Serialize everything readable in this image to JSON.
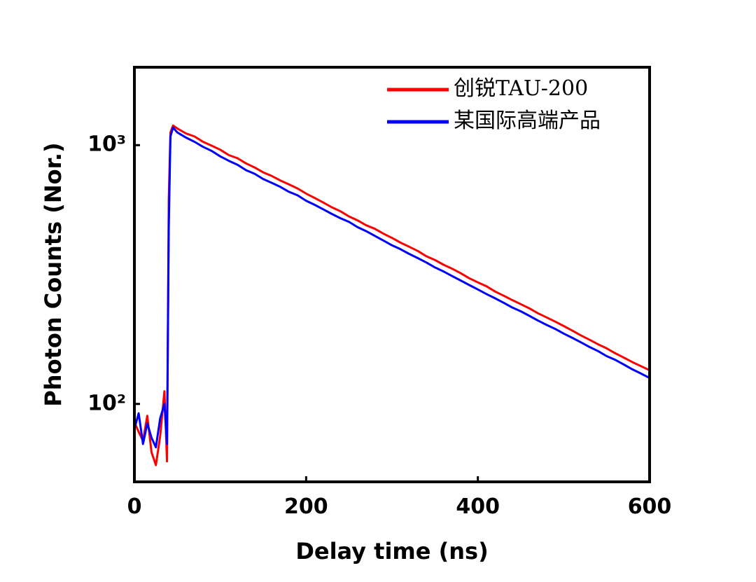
{
  "chart_data": {
    "type": "line",
    "x_label": "Delay time (ns)",
    "y_label": "Photon Counts (Nor.)",
    "xlim": [
      0,
      600
    ],
    "xticks": [
      0,
      200,
      400,
      600
    ],
    "ylim": [
      50,
      2000
    ],
    "log_y": true,
    "yticks": [
      {
        "value": 100,
        "label": "10²"
      },
      {
        "value": 1000,
        "label": "10³"
      }
    ],
    "legend": "upper right",
    "x": [
      0,
      5,
      10,
      15,
      20,
      25,
      30,
      35,
      38,
      40,
      42,
      45,
      50,
      60,
      70,
      80,
      90,
      100,
      110,
      120,
      130,
      140,
      150,
      160,
      170,
      180,
      190,
      200,
      210,
      220,
      230,
      240,
      250,
      260,
      270,
      280,
      290,
      300,
      310,
      320,
      330,
      340,
      350,
      360,
      370,
      380,
      390,
      400,
      410,
      420,
      430,
      440,
      450,
      460,
      470,
      480,
      490,
      500,
      510,
      520,
      530,
      540,
      550,
      560,
      570,
      580,
      590,
      600
    ],
    "series": [
      {
        "name": "创锐TAU-200",
        "color": "#ff0000",
        "values": [
          85,
          78,
          72,
          90,
          65,
          58,
          75,
          112,
          60,
          620,
          1120,
          1190,
          1160,
          1110,
          1080,
          1030,
          995,
          960,
          915,
          890,
          850,
          820,
          785,
          760,
          730,
          705,
          680,
          650,
          625,
          600,
          575,
          555,
          530,
          512,
          490,
          475,
          455,
          438,
          420,
          405,
          390,
          372,
          360,
          345,
          333,
          320,
          306,
          295,
          285,
          272,
          262,
          252,
          243,
          234,
          224,
          216,
          208,
          200,
          192,
          184,
          177,
          170,
          164,
          157,
          151,
          145,
          140,
          135
        ]
      },
      {
        "name": "某国际高端产品",
        "color": "#0000ff",
        "values": [
          80,
          92,
          70,
          84,
          74,
          68,
          88,
          100,
          70,
          480,
          1080,
          1170,
          1120,
          1070,
          1030,
          985,
          950,
          905,
          870,
          840,
          800,
          775,
          740,
          715,
          690,
          660,
          640,
          610,
          588,
          565,
          542,
          522,
          505,
          482,
          465,
          446,
          428,
          410,
          396,
          380,
          366,
          352,
          337,
          325,
          312,
          300,
          288,
          277,
          266,
          256,
          246,
          236,
          228,
          219,
          210,
          202,
          195,
          187,
          180,
          173,
          166,
          160,
          153,
          148,
          142,
          136,
          131,
          126
        ]
      }
    ]
  }
}
